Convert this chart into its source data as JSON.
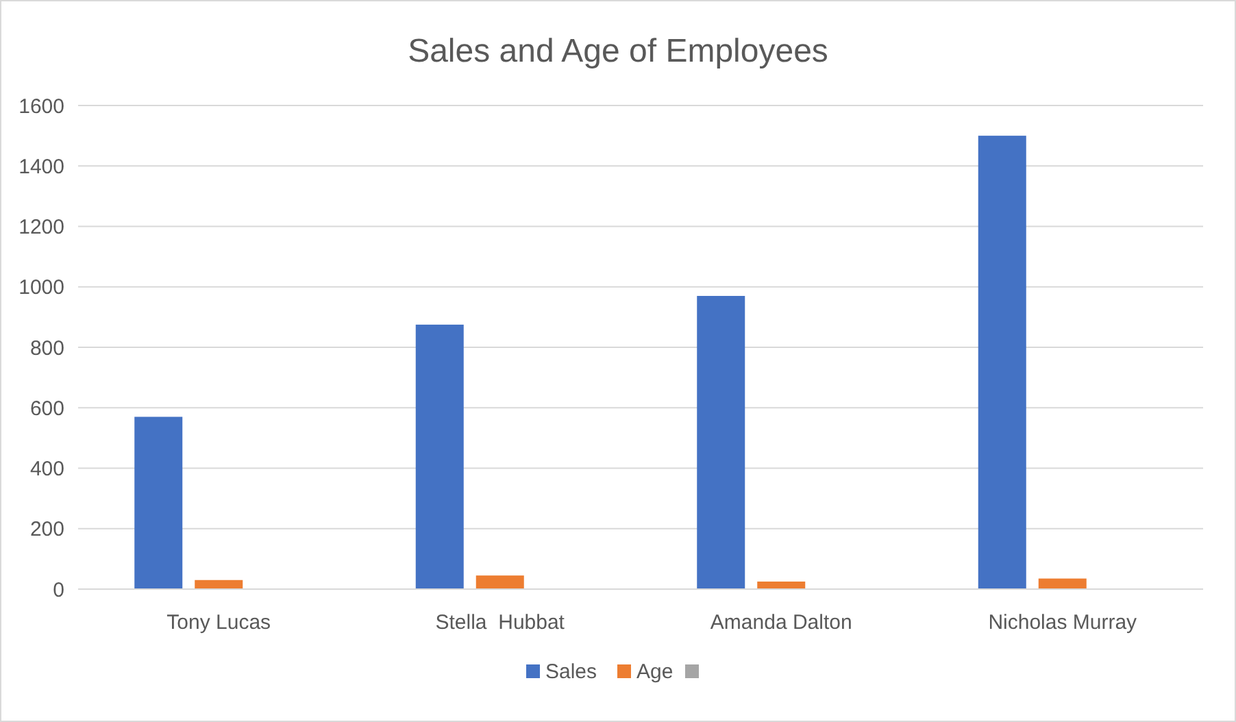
{
  "chart_data": {
    "type": "bar",
    "title": "Sales and Age of Employees",
    "categories": [
      "Tony Lucas",
      "Stella  Hubbat",
      "Amanda Dalton",
      "Nicholas Murray"
    ],
    "series": [
      {
        "name": "Sales",
        "color": "#4472c4",
        "values": [
          570,
          875,
          970,
          1500
        ]
      },
      {
        "name": "Age",
        "color": "#ed7d31",
        "values": [
          30,
          45,
          25,
          35
        ]
      },
      {
        "color": "#a5a5a5",
        "values": [
          null,
          null,
          null,
          null
        ]
      }
    ],
    "ylim": [
      0,
      1600
    ],
    "yticks": [
      0,
      200,
      400,
      600,
      800,
      1000,
      1200,
      1400,
      1600
    ],
    "grid": "y",
    "legend": "bottom"
  }
}
